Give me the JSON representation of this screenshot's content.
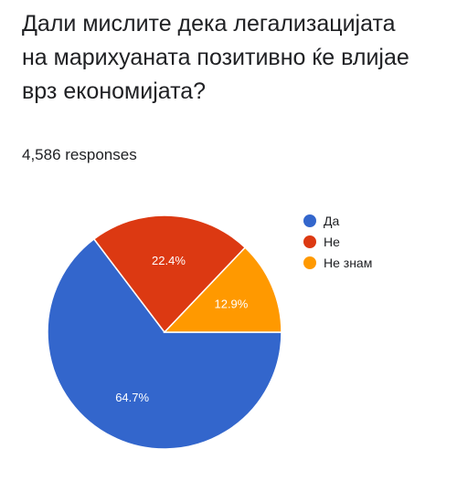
{
  "question": "Дали мислите дека легализацијата на марихуаната позитивно ќе влијае врз економијата?",
  "responses_text": "4,586 responses",
  "chart_data": {
    "type": "pie",
    "categories": [
      "Да",
      "Не",
      "Не знам"
    ],
    "values": [
      64.7,
      22.4,
      12.9
    ],
    "value_labels": [
      "64.7%",
      "22.4%",
      "12.9%"
    ],
    "colors": [
      "#3366cc",
      "#dc3912",
      "#ff9900"
    ],
    "legend_position": "right"
  }
}
